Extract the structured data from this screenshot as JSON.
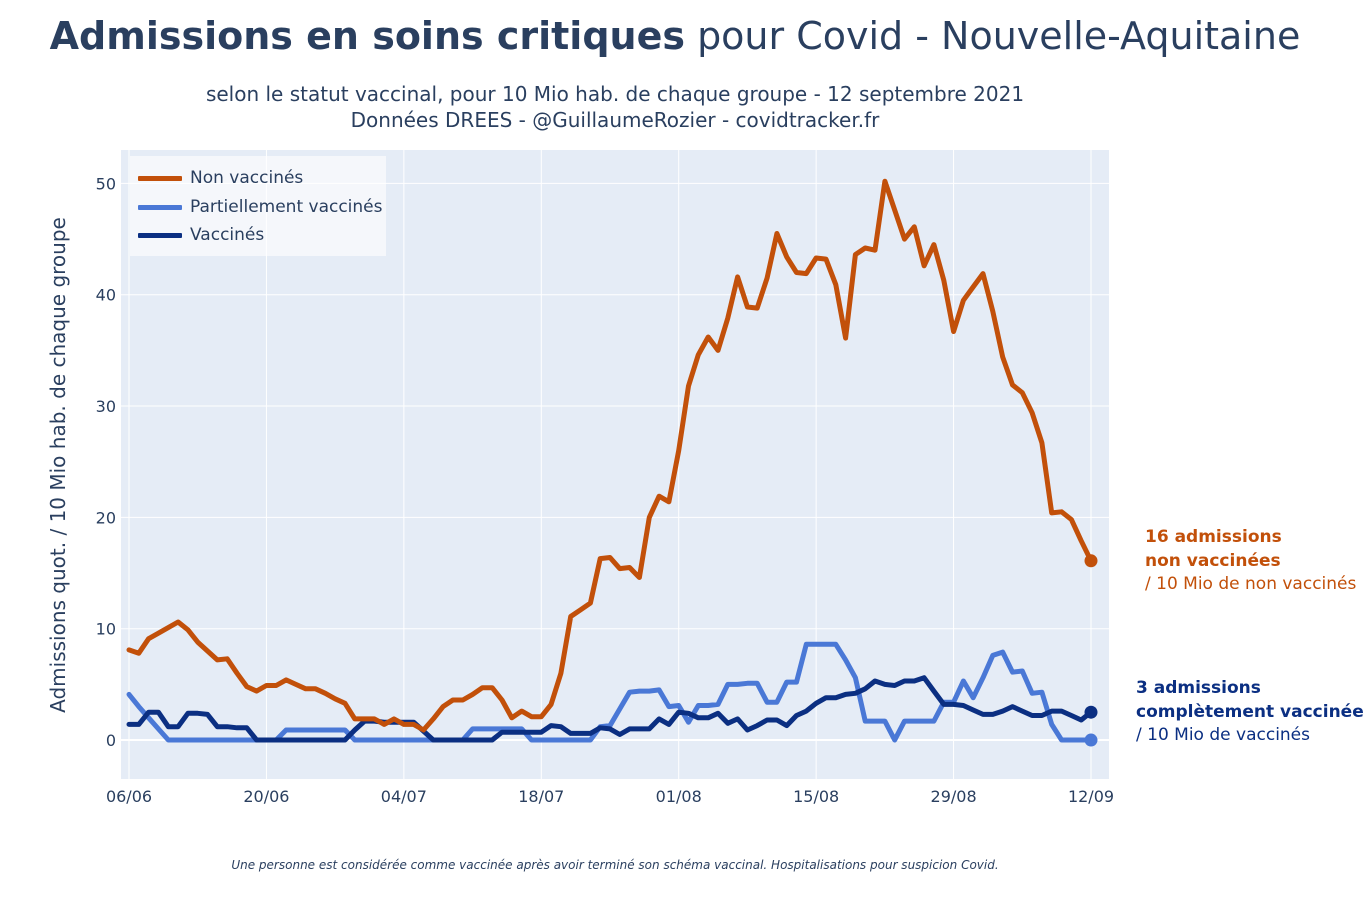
{
  "title": {
    "bold": "Admissions en soins critiques",
    "rest": " pour Covid - Nouvelle-Aquitaine"
  },
  "subtitle_line1": "selon le statut vaccinal, pour 10 Mio hab. de chaque groupe - 12 septembre 2021",
  "subtitle_line2": "Données DREES - @GuillaumeRozier - covidtracker.fr",
  "footnote": "Une personne est considérée comme vaccinée après avoir terminé son schéma vaccinal. Hospitalisations pour suspicion Covid.",
  "annotations": {
    "non_vaccines": {
      "line1": "16 admissions",
      "line2": "non vaccinées",
      "line3": "/ 10 Mio de non vaccinés",
      "color": "#c2500a"
    },
    "vaccines": {
      "line1": "3 admissions",
      "line2": "complètement vaccinée",
      "line3": "/ 10 Mio de vaccinés",
      "color": "#0b2f82"
    }
  },
  "colors": {
    "plot_bg": "#e5ecf6",
    "grid": "#ffffff",
    "text": "#2a3f5f"
  },
  "chart_data": {
    "type": "line",
    "ylabel": "Admissions quot. / 10 Mio hab. de chaque groupe",
    "xlabel": "",
    "x_start": "2021-06-06",
    "x_end": "2021-09-12",
    "xticks": [
      "06/06",
      "20/06",
      "04/07",
      "18/07",
      "01/08",
      "15/08",
      "29/08",
      "12/09"
    ],
    "yticks": [
      0,
      10,
      20,
      30,
      40,
      50
    ],
    "ylim": [
      -3.5,
      53
    ],
    "grid": true,
    "legend_position": "top-left",
    "series": [
      {
        "name": "Non vaccinés",
        "color": "#c2500a",
        "values": [
          8.1,
          7.8,
          9.1,
          9.6,
          10.1,
          10.6,
          9.9,
          8.8,
          8.0,
          7.2,
          7.3,
          6.0,
          4.8,
          4.4,
          4.9,
          4.9,
          5.4,
          5.0,
          4.6,
          4.6,
          4.2,
          3.7,
          3.3,
          1.9,
          1.9,
          1.9,
          1.4,
          1.9,
          1.4,
          1.4,
          0.9,
          1.9,
          3.0,
          3.6,
          3.6,
          4.1,
          4.7,
          4.7,
          3.6,
          2.0,
          2.6,
          2.1,
          2.1,
          3.2,
          6.0,
          11.1,
          11.7,
          12.3,
          16.3,
          16.4,
          15.4,
          15.5,
          14.6,
          20.0,
          21.9,
          21.4,
          26.0,
          31.8,
          34.6,
          36.2,
          35.0,
          37.9,
          41.6,
          38.9,
          38.8,
          41.5,
          45.5,
          43.4,
          42.0,
          41.9,
          43.3,
          43.2,
          40.9,
          36.1,
          43.6,
          44.2,
          44.0,
          50.2,
          47.6,
          45.0,
          46.1,
          42.6,
          44.5,
          41.3,
          36.7,
          39.5,
          40.7,
          41.9,
          38.5,
          34.4,
          31.9,
          31.2,
          29.4,
          26.7,
          20.4,
          20.5,
          19.8,
          17.9,
          16.1
        ]
      },
      {
        "name": "Partiellement vaccinés",
        "color": "#4a78d6",
        "values": [
          4.1,
          3.0,
          2.0,
          1.0,
          0.0,
          0.0,
          0.0,
          0.0,
          0.0,
          0.0,
          0.0,
          0.0,
          0.0,
          0.0,
          0.0,
          0.0,
          0.9,
          0.9,
          0.9,
          0.9,
          0.9,
          0.9,
          0.9,
          0.0,
          0.0,
          0.0,
          0.0,
          0.0,
          0.0,
          0.0,
          0.0,
          0.0,
          0.0,
          0.0,
          0.0,
          1.0,
          1.0,
          1.0,
          1.0,
          1.0,
          1.0,
          0.0,
          0.0,
          0.0,
          0.0,
          0.0,
          0.0,
          0.0,
          1.2,
          1.3,
          2.8,
          4.3,
          4.4,
          4.4,
          4.5,
          3.0,
          3.1,
          1.6,
          3.1,
          3.1,
          3.2,
          5.0,
          5.0,
          5.1,
          5.1,
          3.4,
          3.4,
          5.2,
          5.2,
          8.6,
          8.6,
          8.6,
          8.6,
          7.2,
          5.6,
          1.7,
          1.7,
          1.7,
          0.0,
          1.7,
          1.7,
          1.7,
          1.7,
          3.4,
          3.4,
          5.3,
          3.8,
          5.6,
          7.6,
          7.9,
          6.1,
          6.2,
          4.2,
          4.3,
          1.4,
          0.0,
          0.0,
          0.0,
          0.0
        ]
      },
      {
        "name": "Vaccinés",
        "color": "#0b2f82",
        "values": [
          1.4,
          1.4,
          2.5,
          2.5,
          1.2,
          1.2,
          2.4,
          2.4,
          2.3,
          1.2,
          1.2,
          1.1,
          1.1,
          0.0,
          0.0,
          0.0,
          0.0,
          0.0,
          0.0,
          0.0,
          0.0,
          0.0,
          0.0,
          0.9,
          1.7,
          1.7,
          1.6,
          1.6,
          1.6,
          1.6,
          0.8,
          0.0,
          0.0,
          0.0,
          0.0,
          0.0,
          0.0,
          0.0,
          0.7,
          0.7,
          0.7,
          0.7,
          0.7,
          1.3,
          1.2,
          0.6,
          0.6,
          0.6,
          1.1,
          1.0,
          0.5,
          1.0,
          1.0,
          1.0,
          1.9,
          1.4,
          2.5,
          2.4,
          2.0,
          2.0,
          2.4,
          1.5,
          1.9,
          0.9,
          1.3,
          1.8,
          1.8,
          1.3,
          2.2,
          2.6,
          3.3,
          3.8,
          3.8,
          4.1,
          4.2,
          4.6,
          5.3,
          5.0,
          4.9,
          5.3,
          5.3,
          5.6,
          4.4,
          3.2,
          3.2,
          3.1,
          2.7,
          2.3,
          2.3,
          2.6,
          3.0,
          2.6,
          2.2,
          2.2,
          2.6,
          2.6,
          2.2,
          1.8,
          2.5
        ]
      }
    ]
  }
}
